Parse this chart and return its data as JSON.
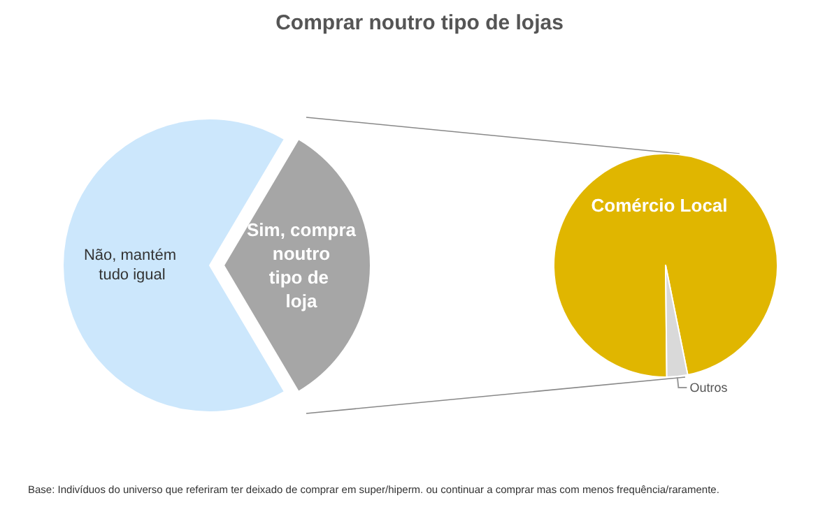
{
  "chart_data": [
    {
      "type": "pie",
      "title": "Comprar noutro tipo de lojas",
      "categories": [
        "Não, mantém tudo igual",
        "Sim, compra noutro tipo de loja"
      ],
      "values": [
        67,
        33
      ],
      "colors": [
        "#cce7fc",
        "#a6a6a6"
      ],
      "annotations": [
        "Base: Indivíduos do universo que referiram  ter deixado de comprar em super/hiperm. ou continuar a comprar mas com menos frequência/raramente."
      ]
    },
    {
      "type": "pie",
      "categories": [
        "Comércio Local",
        "Outros"
      ],
      "values": [
        97,
        3
      ],
      "colors": [
        "#e0b600",
        "#d9d9d9"
      ]
    }
  ]
}
